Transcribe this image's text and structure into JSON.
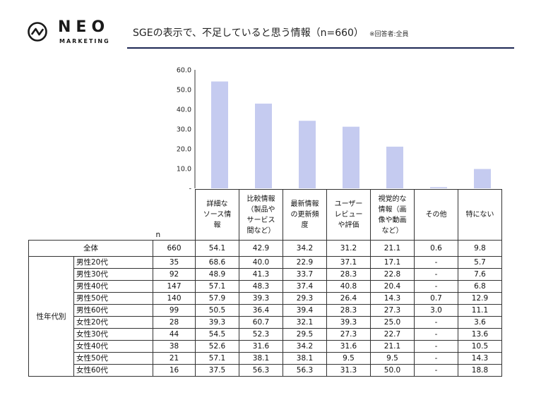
{
  "brand": {
    "name": "NEO",
    "tagline": "MARKETING",
    "logo_icon": "wave-circle-icon"
  },
  "heading": {
    "title": "SGEの表示で、不足していると思う情報（n=660）",
    "note": "※回答者:全員"
  },
  "colors": {
    "bar": "#c5cbf0",
    "rule": "#1d2754",
    "axis": "#333333"
  },
  "chart_data": {
    "type": "bar",
    "categories": [
      "詳細なソース情報",
      "比較情報（製品やサービス間など）",
      "最新情報の更新頻度",
      "ユーザーレビューや評価",
      "視覚的な情報（画像や動画など）",
      "その他",
      "特にない"
    ],
    "values": [
      54.1,
      42.9,
      34.2,
      31.2,
      21.1,
      0.6,
      9.8
    ],
    "ylim": [
      0,
      60
    ],
    "yticks": [
      "-",
      "10.0",
      "20.0",
      "30.0",
      "40.0",
      "50.0",
      "60.0"
    ],
    "grid": false,
    "legend": "none"
  },
  "table": {
    "n_label": "n",
    "headers": [
      "詳細な\nソース情\n報",
      "比較情報\n（製品や\nサービス\n間など）",
      "最新情報\nの更新頻\n度",
      "ユーザー\nレビュー\nや評価",
      "視覚的な\n情報（画\n像や動画\nなど）",
      "その他",
      "特にない"
    ],
    "total": {
      "label": "全体",
      "n": "660",
      "values": [
        "54.1",
        "42.9",
        "34.2",
        "31.2",
        "21.1",
        "0.6",
        "9.8"
      ]
    },
    "group_label": "性年代別",
    "rows": [
      {
        "label": "男性20代",
        "n": "35",
        "values": [
          "68.6",
          "40.0",
          "22.9",
          "37.1",
          "17.1",
          "-",
          "5.7"
        ]
      },
      {
        "label": "男性30代",
        "n": "92",
        "values": [
          "48.9",
          "41.3",
          "33.7",
          "28.3",
          "22.8",
          "-",
          "7.6"
        ]
      },
      {
        "label": "男性40代",
        "n": "147",
        "values": [
          "57.1",
          "48.3",
          "37.4",
          "40.8",
          "20.4",
          "-",
          "6.8"
        ]
      },
      {
        "label": "男性50代",
        "n": "140",
        "values": [
          "57.9",
          "39.3",
          "29.3",
          "26.4",
          "14.3",
          "0.7",
          "12.9"
        ]
      },
      {
        "label": "男性60代",
        "n": "99",
        "values": [
          "50.5",
          "36.4",
          "39.4",
          "28.3",
          "27.3",
          "3.0",
          "11.1"
        ]
      },
      {
        "label": "女性20代",
        "n": "28",
        "values": [
          "39.3",
          "60.7",
          "32.1",
          "39.3",
          "25.0",
          "-",
          "3.6"
        ]
      },
      {
        "label": "女性30代",
        "n": "44",
        "values": [
          "54.5",
          "52.3",
          "29.5",
          "27.3",
          "22.7",
          "-",
          "13.6"
        ]
      },
      {
        "label": "女性40代",
        "n": "38",
        "values": [
          "52.6",
          "31.6",
          "34.2",
          "31.6",
          "21.1",
          "-",
          "10.5"
        ]
      },
      {
        "label": "女性50代",
        "n": "21",
        "values": [
          "57.1",
          "38.1",
          "38.1",
          "9.5",
          "9.5",
          "-",
          "14.3"
        ]
      },
      {
        "label": "女性60代",
        "n": "16",
        "values": [
          "37.5",
          "56.3",
          "56.3",
          "31.3",
          "50.0",
          "-",
          "18.8"
        ]
      }
    ]
  }
}
